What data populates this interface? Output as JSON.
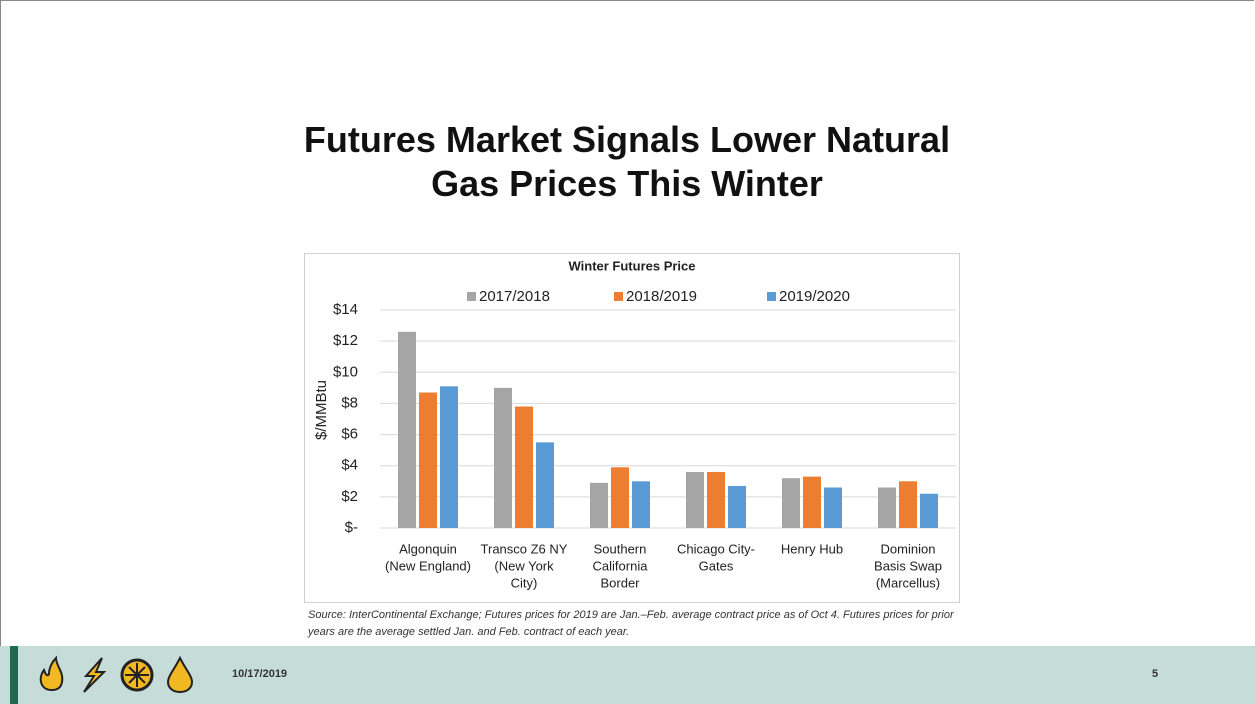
{
  "chart_data": {
    "type": "bar",
    "slide_title": "Futures Market Signals Lower Natural Gas Prices This Winter",
    "title": "Winter Futures Price",
    "ylabel": "$/MMBtu",
    "categories": [
      [
        "Algonquin",
        "(New England)"
      ],
      [
        "Transco Z6 NY",
        "(New York",
        "City)"
      ],
      [
        "Southern",
        "California",
        "Border"
      ],
      [
        "Chicago City-",
        "Gates"
      ],
      [
        "Henry Hub"
      ],
      [
        "Dominion",
        "Basis Swap",
        "(Marcellus)"
      ]
    ],
    "series": [
      {
        "name": "2017/2018",
        "color": "#a5a5a5",
        "values": [
          12.6,
          9.0,
          2.9,
          3.6,
          3.2,
          2.6
        ]
      },
      {
        "name": "2018/2019",
        "color": "#ed7d31",
        "values": [
          8.7,
          7.8,
          3.9,
          3.6,
          3.3,
          3.0
        ]
      },
      {
        "name": "2019/2020",
        "color": "#5b9bd5",
        "values": [
          9.1,
          5.5,
          3.0,
          2.7,
          2.6,
          2.2
        ]
      }
    ],
    "ylim": [
      0,
      14
    ],
    "yticks": [
      {
        "value": 0,
        "label": "$-"
      },
      {
        "value": 2,
        "label": "$2"
      },
      {
        "value": 4,
        "label": "$4"
      },
      {
        "value": 6,
        "label": "$6"
      },
      {
        "value": 8,
        "label": "$8"
      },
      {
        "value": 10,
        "label": "$10"
      },
      {
        "value": 12,
        "label": "$12"
      },
      {
        "value": 14,
        "label": "$14"
      }
    ],
    "grid": true,
    "legend": "top",
    "source": "Source: InterContinental Exchange; Futures prices for 2019 are Jan.–Feb. average contract price as of Oct 4.  Futures prices for prior years are the average settled Jan. and Feb. contract of each year."
  },
  "footer": {
    "date": "10/17/2019",
    "page": "5"
  }
}
